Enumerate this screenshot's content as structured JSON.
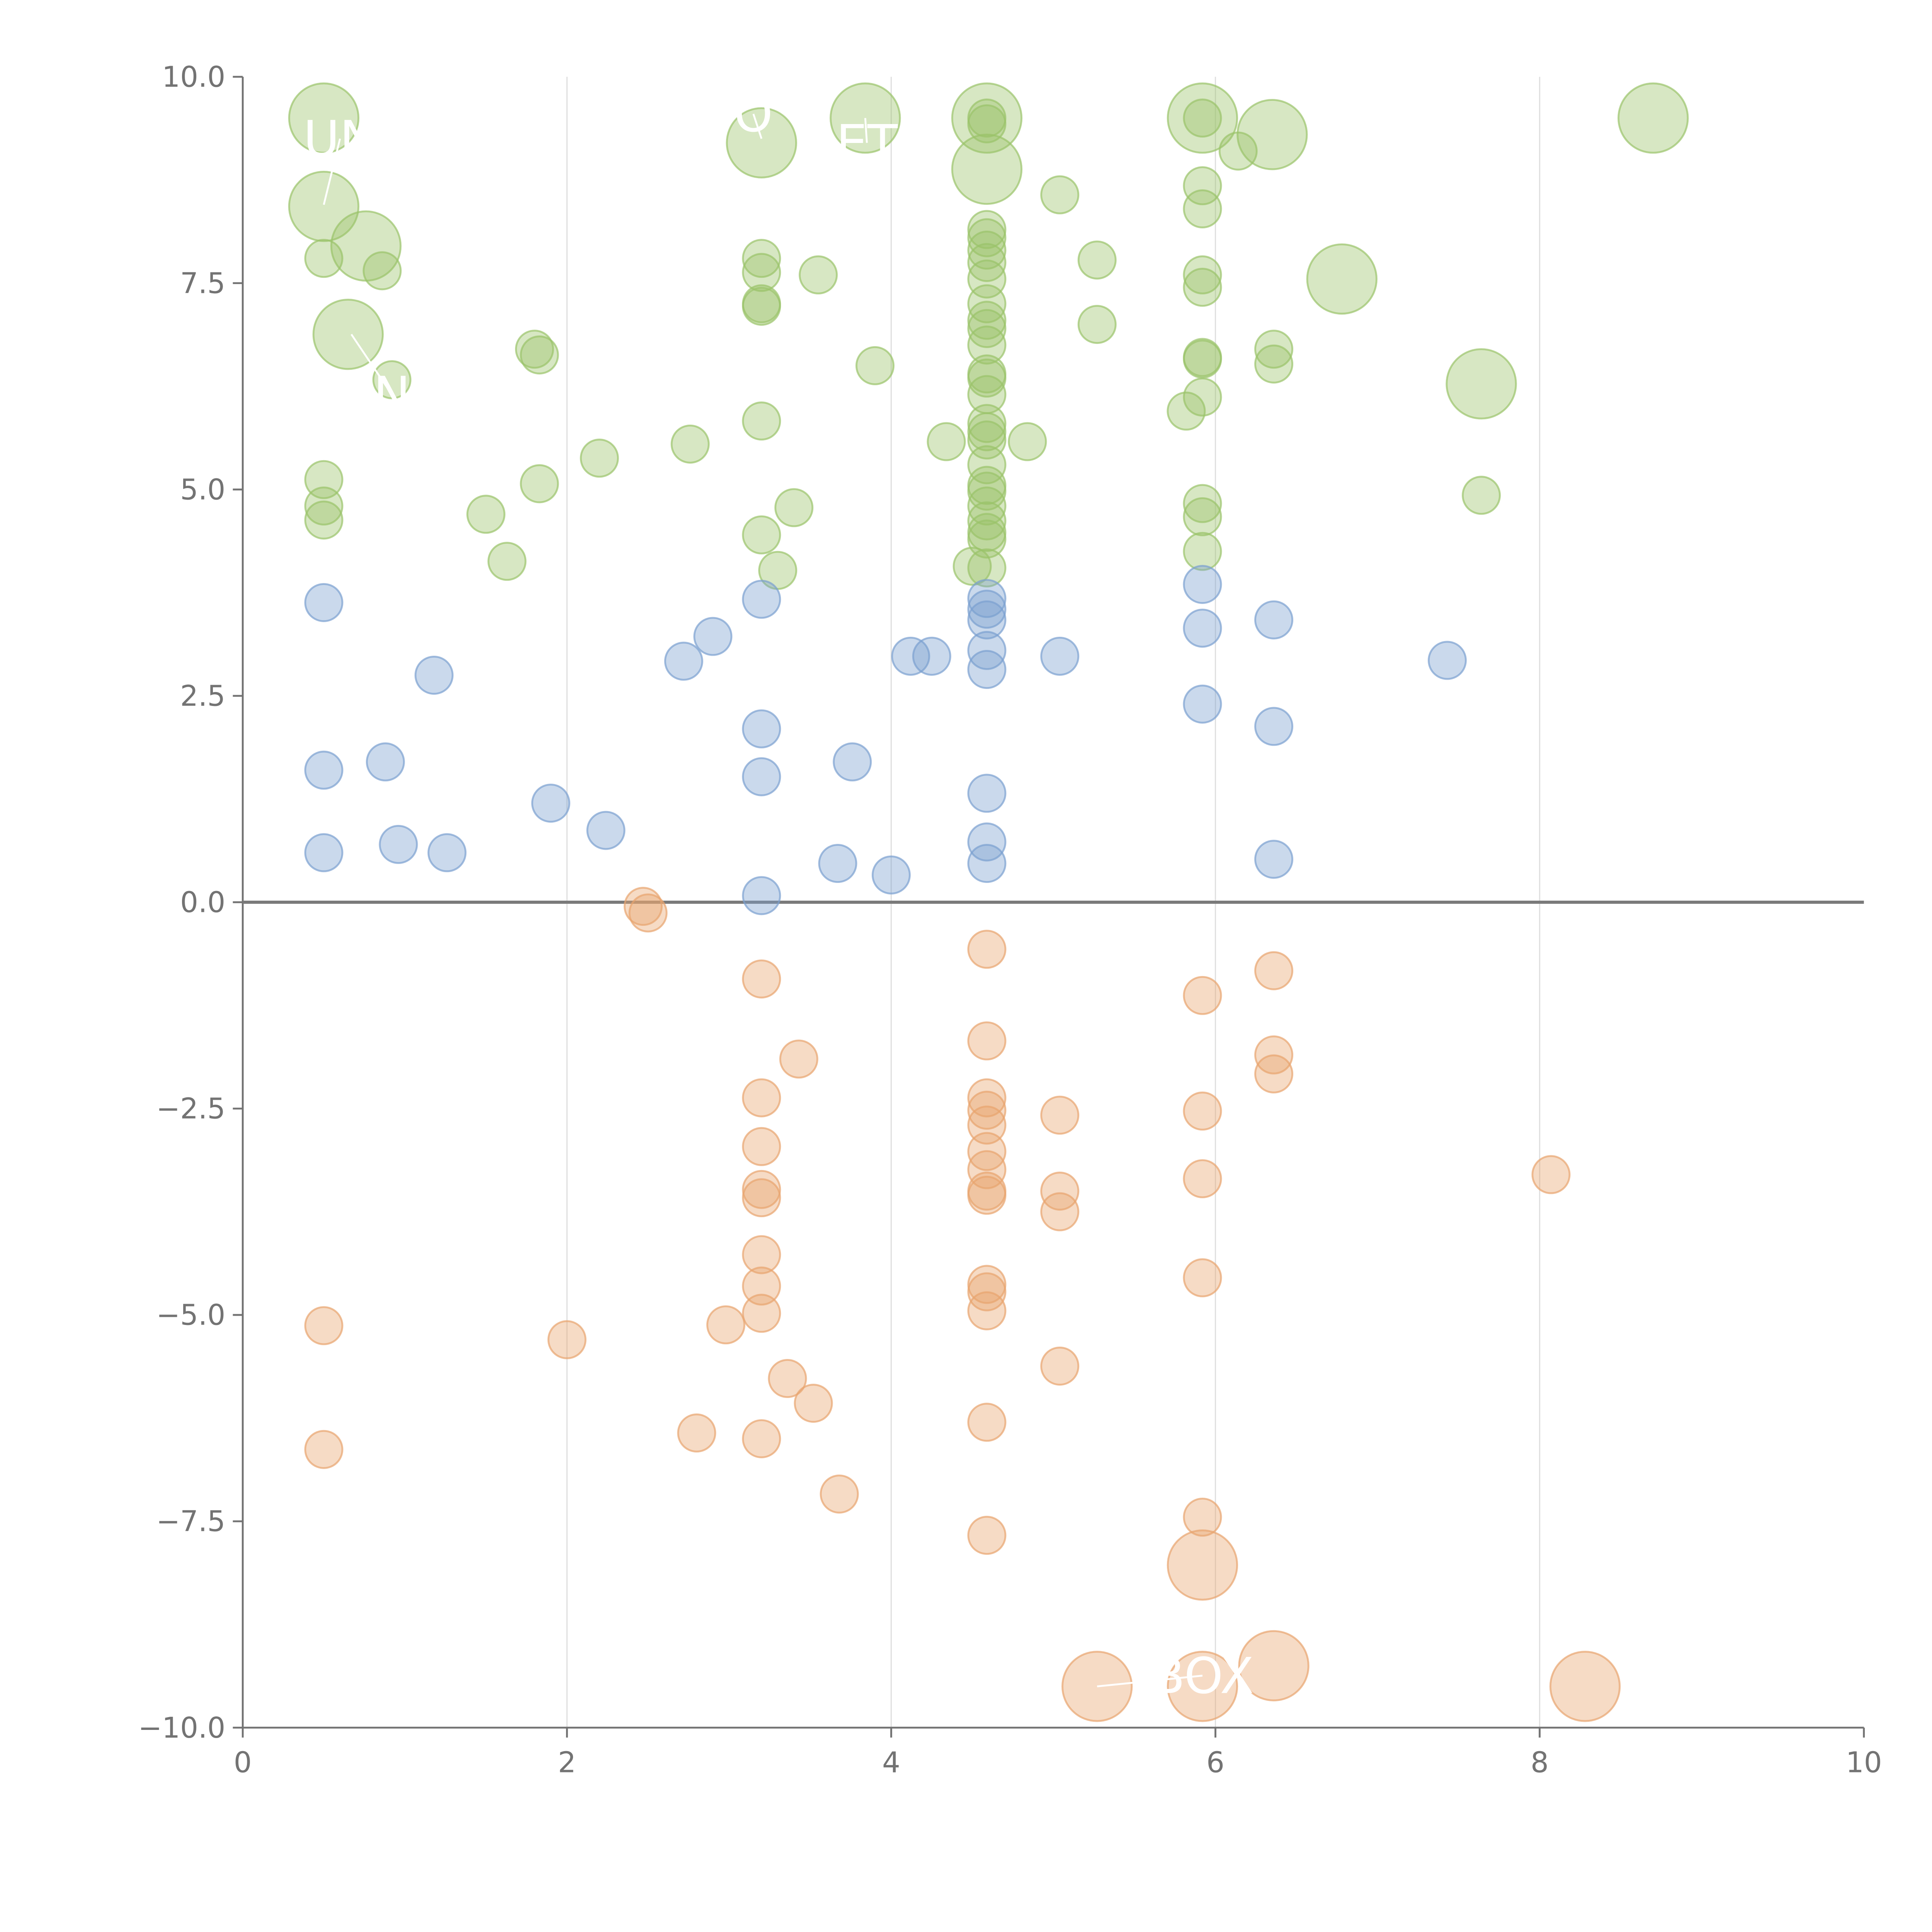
{
  "chart_data": {
    "type": "scatter",
    "title": "",
    "xlabel": "",
    "ylabel": "",
    "xlim": [
      0,
      10
    ],
    "ylim": [
      -10,
      10
    ],
    "x_ticks": [
      0,
      2,
      4,
      6,
      8,
      10
    ],
    "x_tick_labels": [
      "0",
      "2",
      "4",
      "6",
      "8",
      "10"
    ],
    "y_ticks": [
      10,
      7.5,
      5,
      2.5,
      0,
      -2.5,
      -5,
      -7.5,
      -10
    ],
    "y_tick_labels": [
      "10.0",
      "7.5",
      "5.0",
      "2.5",
      "0.0",
      "−2.5",
      "−5.0",
      "−7.5",
      "−10.0"
    ],
    "vertical_grid": true,
    "horizontal_grid": false,
    "zero_line": true,
    "legend": "none",
    "colors": {
      "top": "#9ac36a",
      "middle": "#7aa0d0",
      "bottom": "#e8a46e",
      "axis": "#737373",
      "grid": "#e0e0e0",
      "zero_line": "#7a7a7a",
      "label": "#ffffff"
    },
    "series": [
      {
        "group": "top",
        "points": [
          [
            0.5,
            9.5,
            "L"
          ],
          [
            0.5,
            8.43,
            "L"
          ],
          [
            0.76,
            7.95,
            "L"
          ],
          [
            0.65,
            6.88,
            "L"
          ],
          [
            0.5,
            7.8,
            "S"
          ],
          [
            0.86,
            7.65,
            "S"
          ],
          [
            0.92,
            6.33,
            "S"
          ],
          [
            1.8,
            6.7,
            "S"
          ],
          [
            1.83,
            6.63,
            "S"
          ],
          [
            1.83,
            5.07,
            "S"
          ],
          [
            1.5,
            4.7,
            "S"
          ],
          [
            1.63,
            4.13,
            "S"
          ],
          [
            2.2,
            5.38,
            "S"
          ],
          [
            0.5,
            5.12,
            "S"
          ],
          [
            0.5,
            4.8,
            "S"
          ],
          [
            0.5,
            4.63,
            "S"
          ],
          [
            2.76,
            5.55,
            "S"
          ],
          [
            3.2,
            9.2,
            "L"
          ],
          [
            3.84,
            9.5,
            "L"
          ],
          [
            3.2,
            7.8,
            "S"
          ],
          [
            3.2,
            7.63,
            "S"
          ],
          [
            3.2,
            7.25,
            "S"
          ],
          [
            3.2,
            7.22,
            "S"
          ],
          [
            3.55,
            7.6,
            "S"
          ],
          [
            3.2,
            5.83,
            "S"
          ],
          [
            3.4,
            4.78,
            "S"
          ],
          [
            3.2,
            4.45,
            "S"
          ],
          [
            3.3,
            4.02,
            "S"
          ],
          [
            3.9,
            6.5,
            "S"
          ],
          [
            4.34,
            5.58,
            "S"
          ],
          [
            4.84,
            5.58,
            "S"
          ],
          [
            5.04,
            8.57,
            "S"
          ],
          [
            5.27,
            7.78,
            "S"
          ],
          [
            5.27,
            7.0,
            "S"
          ],
          [
            4.59,
            9.5,
            "L"
          ],
          [
            4.59,
            8.88,
            "L"
          ],
          [
            4.59,
            9.5,
            "S"
          ],
          [
            4.59,
            9.43,
            "S"
          ],
          [
            4.59,
            8.15,
            "S"
          ],
          [
            4.59,
            8.05,
            "S"
          ],
          [
            4.59,
            7.9,
            "S"
          ],
          [
            4.59,
            7.75,
            "S"
          ],
          [
            4.59,
            7.55,
            "S"
          ],
          [
            4.59,
            7.25,
            "S"
          ],
          [
            4.59,
            7.05,
            "S"
          ],
          [
            4.59,
            6.95,
            "S"
          ],
          [
            4.59,
            6.75,
            "S"
          ],
          [
            4.59,
            6.4,
            "S"
          ],
          [
            4.59,
            6.35,
            "S"
          ],
          [
            4.59,
            6.15,
            "S"
          ],
          [
            4.59,
            5.8,
            "S"
          ],
          [
            4.59,
            5.7,
            "S"
          ],
          [
            4.59,
            5.6,
            "S"
          ],
          [
            4.59,
            5.3,
            "S"
          ],
          [
            4.59,
            5.05,
            "S"
          ],
          [
            4.59,
            4.98,
            "S"
          ],
          [
            4.59,
            4.8,
            "S"
          ],
          [
            4.59,
            4.62,
            "S"
          ],
          [
            4.59,
            4.48,
            "S"
          ],
          [
            4.59,
            4.4,
            "S"
          ],
          [
            4.5,
            4.07,
            "S"
          ],
          [
            4.59,
            4.05,
            "S"
          ],
          [
            5.92,
            9.5,
            "L"
          ],
          [
            5.92,
            9.5,
            "S"
          ],
          [
            6.35,
            9.3,
            "L"
          ],
          [
            6.14,
            9.1,
            "S"
          ],
          [
            5.92,
            8.68,
            "S"
          ],
          [
            5.92,
            8.4,
            "S"
          ],
          [
            5.92,
            7.6,
            "S"
          ],
          [
            5.92,
            7.45,
            "S"
          ],
          [
            5.92,
            6.6,
            "S"
          ],
          [
            5.92,
            6.58,
            "S"
          ],
          [
            5.92,
            6.12,
            "S"
          ],
          [
            5.82,
            5.95,
            "S"
          ],
          [
            5.92,
            4.83,
            "S"
          ],
          [
            5.92,
            4.67,
            "S"
          ],
          [
            5.92,
            4.25,
            "S"
          ],
          [
            6.36,
            6.7,
            "S"
          ],
          [
            6.36,
            6.52,
            "S"
          ],
          [
            6.78,
            7.55,
            "L"
          ],
          [
            7.64,
            6.28,
            "L"
          ],
          [
            7.64,
            4.93,
            "S"
          ],
          [
            8.7,
            9.5,
            "L"
          ]
        ]
      },
      {
        "group": "middle",
        "points": [
          [
            0.5,
            3.63,
            "S"
          ],
          [
            0.5,
            1.6,
            "S"
          ],
          [
            0.5,
            0.6,
            "S"
          ],
          [
            0.88,
            1.7,
            "S"
          ],
          [
            0.96,
            0.7,
            "S"
          ],
          [
            1.18,
            2.75,
            "S"
          ],
          [
            1.26,
            0.6,
            "S"
          ],
          [
            1.9,
            1.2,
            "S"
          ],
          [
            2.24,
            0.87,
            "S"
          ],
          [
            2.72,
            2.92,
            "S"
          ],
          [
            2.9,
            3.22,
            "S"
          ],
          [
            3.2,
            3.67,
            "S"
          ],
          [
            3.2,
            2.1,
            "S"
          ],
          [
            3.2,
            1.52,
            "S"
          ],
          [
            3.2,
            0.08,
            "S"
          ],
          [
            3.67,
            0.47,
            "S"
          ],
          [
            3.76,
            1.7,
            "S"
          ],
          [
            4.0,
            0.33,
            "S"
          ],
          [
            4.12,
            2.98,
            "S"
          ],
          [
            4.25,
            2.98,
            "S"
          ],
          [
            4.59,
            3.68,
            "S"
          ],
          [
            4.59,
            3.55,
            "S"
          ],
          [
            4.59,
            3.42,
            "S"
          ],
          [
            4.59,
            3.05,
            "S"
          ],
          [
            4.59,
            2.82,
            "S"
          ],
          [
            4.59,
            1.32,
            "S"
          ],
          [
            4.59,
            0.73,
            "S"
          ],
          [
            4.59,
            0.47,
            "S"
          ],
          [
            5.04,
            2.98,
            "S"
          ],
          [
            5.92,
            3.85,
            "S"
          ],
          [
            5.92,
            3.32,
            "S"
          ],
          [
            5.92,
            2.4,
            "S"
          ],
          [
            6.36,
            3.42,
            "S"
          ],
          [
            6.36,
            2.13,
            "S"
          ],
          [
            6.36,
            0.52,
            "S"
          ],
          [
            7.43,
            2.93,
            "S"
          ]
        ]
      },
      {
        "group": "bottom",
        "points": [
          [
            0.5,
            -5.13,
            "S"
          ],
          [
            0.5,
            -6.63,
            "S"
          ],
          [
            2.0,
            -5.3,
            "S"
          ],
          [
            2.47,
            -0.05,
            "S"
          ],
          [
            2.5,
            -0.13,
            "S"
          ],
          [
            2.8,
            -6.43,
            "S"
          ],
          [
            2.98,
            -5.12,
            "S"
          ],
          [
            3.2,
            -0.93,
            "S"
          ],
          [
            3.2,
            -2.37,
            "S"
          ],
          [
            3.2,
            -2.96,
            "S"
          ],
          [
            3.2,
            -3.48,
            "S"
          ],
          [
            3.2,
            -3.58,
            "S"
          ],
          [
            3.2,
            -4.27,
            "S"
          ],
          [
            3.2,
            -4.65,
            "S"
          ],
          [
            3.2,
            -4.98,
            "S"
          ],
          [
            3.2,
            -6.5,
            "S"
          ],
          [
            3.43,
            -1.9,
            "S"
          ],
          [
            3.36,
            -5.77,
            "S"
          ],
          [
            3.52,
            -6.07,
            "S"
          ],
          [
            3.68,
            -7.17,
            "S"
          ],
          [
            4.59,
            -0.57,
            "S"
          ],
          [
            4.59,
            -1.68,
            "S"
          ],
          [
            4.59,
            -2.37,
            "S"
          ],
          [
            4.59,
            -2.52,
            "S"
          ],
          [
            4.59,
            -2.7,
            "S"
          ],
          [
            4.59,
            -3.02,
            "S"
          ],
          [
            4.59,
            -3.24,
            "S"
          ],
          [
            4.59,
            -3.5,
            "S"
          ],
          [
            4.59,
            -3.55,
            "S"
          ],
          [
            4.59,
            -4.63,
            "S"
          ],
          [
            4.59,
            -4.72,
            "S"
          ],
          [
            4.59,
            -4.95,
            "S"
          ],
          [
            4.59,
            -6.3,
            "S"
          ],
          [
            4.59,
            -7.67,
            "S"
          ],
          [
            5.04,
            -2.58,
            "S"
          ],
          [
            5.04,
            -3.5,
            "S"
          ],
          [
            5.04,
            -3.75,
            "S"
          ],
          [
            5.04,
            -5.62,
            "S"
          ],
          [
            5.27,
            -9.5,
            "L"
          ],
          [
            5.92,
            -1.13,
            "S"
          ],
          [
            5.92,
            -2.53,
            "S"
          ],
          [
            5.92,
            -3.35,
            "S"
          ],
          [
            5.92,
            -4.55,
            "S"
          ],
          [
            5.92,
            -7.45,
            "S"
          ],
          [
            5.92,
            -8.03,
            "L"
          ],
          [
            5.92,
            -9.5,
            "L"
          ],
          [
            6.36,
            -0.83,
            "S"
          ],
          [
            6.36,
            -1.85,
            "S"
          ],
          [
            6.36,
            -2.08,
            "S"
          ],
          [
            6.36,
            -9.25,
            "L"
          ],
          [
            8.07,
            -3.3,
            "S"
          ],
          [
            8.28,
            -9.5,
            "L"
          ]
        ]
      }
    ],
    "annotations": [
      {
        "text": "UN",
        "x": 0.6,
        "y": 9.25,
        "px": 0.5,
        "py": 8.45
      },
      {
        "text": "O",
        "x": 3.15,
        "y": 9.55,
        "px": 3.2,
        "py": 9.25
      },
      {
        "text": "ET",
        "x": 3.85,
        "y": 9.2,
        "px": 3.84,
        "py": 9.5
      },
      {
        "text": "N",
        "x": 0.92,
        "y": 6.15,
        "px": 0.67,
        "py": 6.88
      },
      {
        "text": "BOX",
        "x": 5.92,
        "y": -9.37,
        "px": 5.27,
        "py": -9.5
      }
    ]
  }
}
